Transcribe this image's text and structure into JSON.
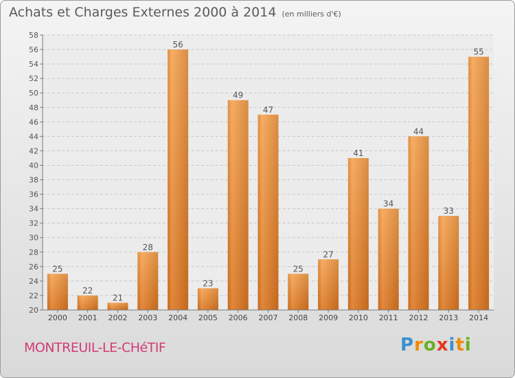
{
  "title": "Achats et Charges Externes 2000 à 2014",
  "unit": "(en milliers d'€)",
  "commune": "MONTREUIL-LE-CHéTIF",
  "logo": {
    "letters": [
      "P",
      "r",
      "o",
      "x",
      "i",
      "t",
      "i"
    ],
    "colors": [
      "#3a8fd0",
      "#f08a00",
      "#6ab023",
      "#e5361f",
      "#3a8fd0",
      "#f08a00",
      "#6ab023"
    ]
  },
  "colors": {
    "bar": "#f0913a",
    "bar_dark": "#d8731c",
    "commune": "#d23b73",
    "text": "#5a5a5a"
  },
  "chart_data": {
    "type": "bar",
    "title": "Achats et Charges Externes 2000 à 2014",
    "categories": [
      "2000",
      "2001",
      "2002",
      "2003",
      "2004",
      "2005",
      "2006",
      "2007",
      "2008",
      "2009",
      "2010",
      "2011",
      "2012",
      "2013",
      "2014"
    ],
    "values": [
      25,
      22,
      21,
      28,
      56,
      23,
      49,
      47,
      25,
      27,
      41,
      34,
      44,
      33,
      55
    ],
    "ylim": [
      20,
      58
    ],
    "yticks": [
      20,
      22,
      24,
      26,
      28,
      30,
      32,
      34,
      36,
      38,
      40,
      42,
      44,
      46,
      48,
      50,
      52,
      54,
      56,
      58
    ],
    "grid": true,
    "xlabel": "",
    "ylabel": ""
  }
}
